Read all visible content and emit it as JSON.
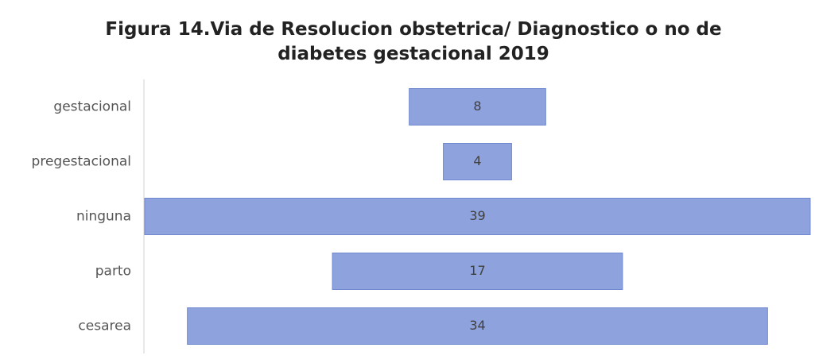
{
  "chart_data": {
    "type": "funnel",
    "title": "Figura 14.Via de Resolucion obstetrica/ Diagnostico o no de diabetes gestacional 2019",
    "categories": [
      "gestacional",
      "pregestacional",
      "ninguna",
      "parto",
      "cesarea"
    ],
    "values": [
      8,
      4,
      39,
      17,
      34
    ],
    "color": "#8ea2dd"
  }
}
